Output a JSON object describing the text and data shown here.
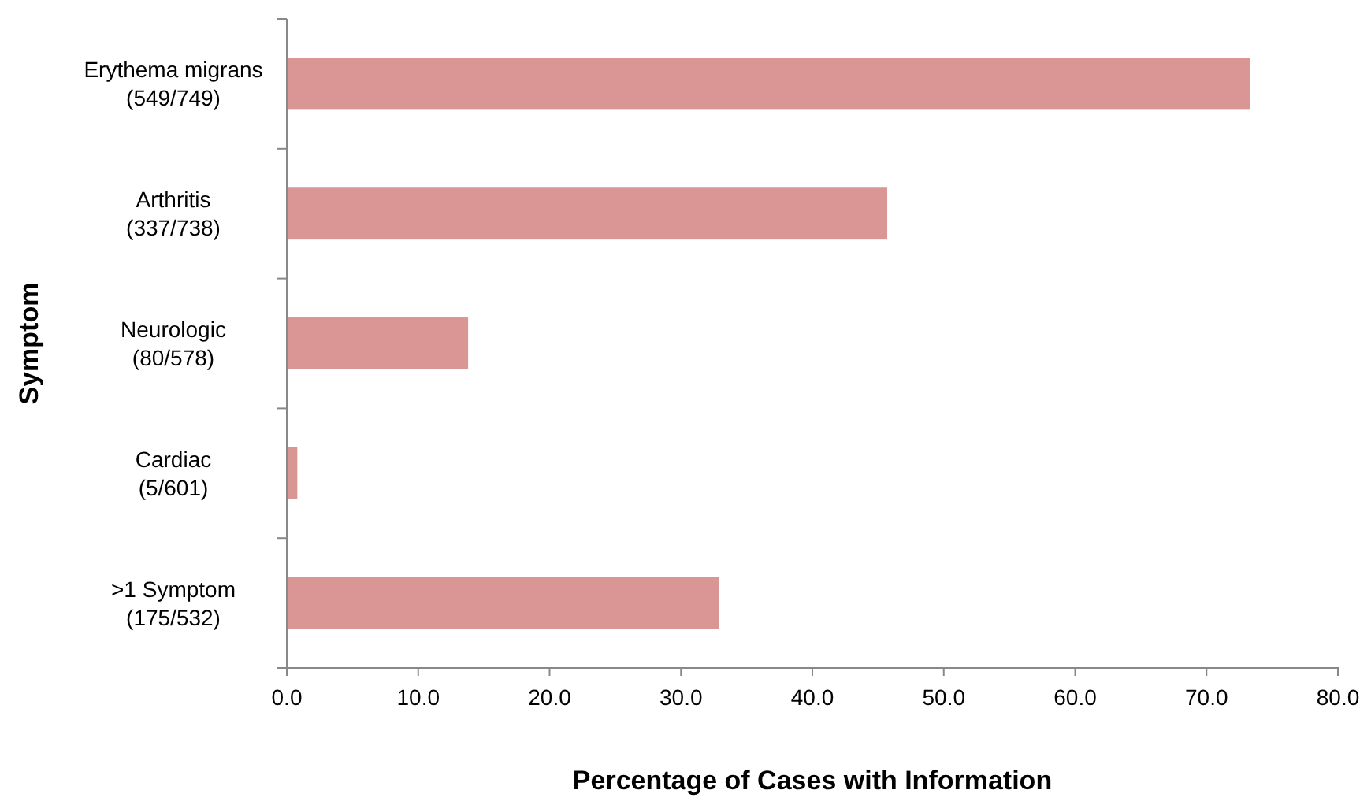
{
  "chart_data": {
    "type": "bar",
    "orientation": "horizontal",
    "xlabel": "Percentage of Cases with Information",
    "ylabel": "Symptom",
    "categories": [
      "Erythema migrans\n(549/749)",
      "Arthritis\n(337/738)",
      "Neurologic\n(80/578)",
      "Cardiac\n(5/601)",
      ">1 Symptom\n(175/532)"
    ],
    "values": [
      73.3,
      45.7,
      13.8,
      0.8,
      32.9
    ],
    "color": "#d99694",
    "xlim": [
      0,
      80
    ],
    "xticks": [
      {
        "value": 0,
        "label": "0.0"
      },
      {
        "value": 10,
        "label": "10.0"
      },
      {
        "value": 20,
        "label": "20.0"
      },
      {
        "value": 30,
        "label": "30.0"
      },
      {
        "value": 40,
        "label": "40.0"
      },
      {
        "value": 50,
        "label": "50.0"
      },
      {
        "value": 60,
        "label": "60.0"
      },
      {
        "value": 70,
        "label": "70.0"
      },
      {
        "value": 80,
        "label": "80.0"
      }
    ],
    "grid": false
  }
}
